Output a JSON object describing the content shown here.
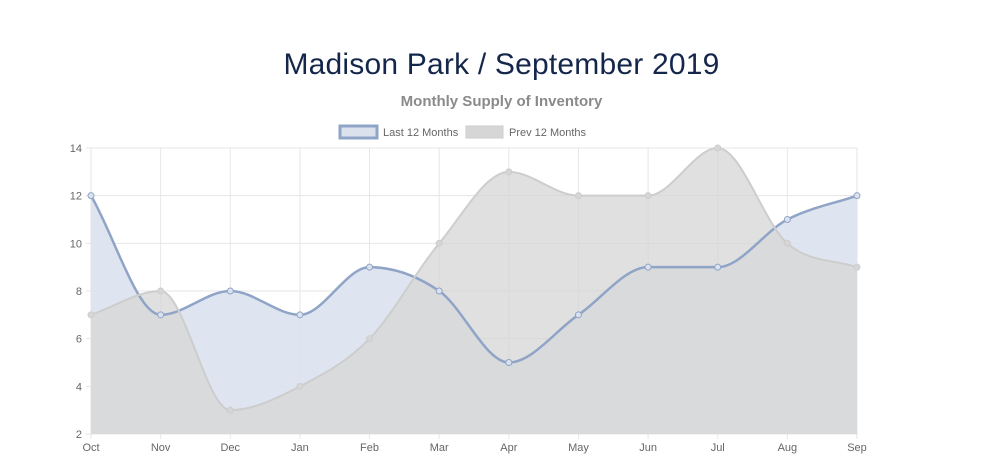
{
  "chart_data": {
    "type": "area",
    "title": "Madison Park / September 2019",
    "subtitle": "Monthly Supply of Inventory",
    "categories": [
      "Oct",
      "Nov",
      "Dec",
      "Jan",
      "Feb",
      "Mar",
      "Apr",
      "May",
      "Jun",
      "Jul",
      "Aug",
      "Sep"
    ],
    "series": [
      {
        "name": "Last 12 Months",
        "values": [
          12,
          7,
          8,
          7,
          9,
          8,
          5,
          7,
          9,
          9,
          11,
          12
        ],
        "line_color": "#8fa4c7",
        "fill_color": "#dbe2ee"
      },
      {
        "name": "Prev 12 Months",
        "values": [
          7,
          8,
          3,
          4,
          6,
          10,
          13,
          12,
          12,
          14,
          10,
          9
        ],
        "line_color": "#cdcdcd",
        "fill_color": "#d6d6d6"
      }
    ],
    "y_ticks": [
      "2",
      "4",
      "6",
      "8",
      "10",
      "12",
      "14"
    ],
    "ylim": [
      2,
      14
    ],
    "grid": true,
    "legend_position": "top-center"
  }
}
